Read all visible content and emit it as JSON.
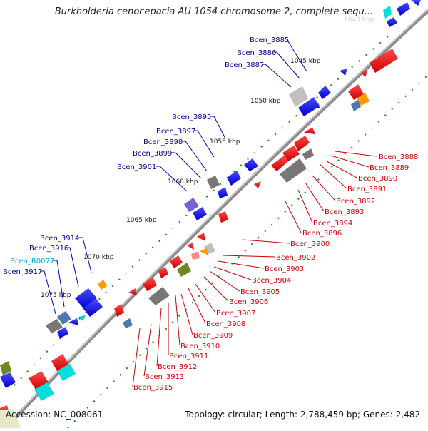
{
  "title": "Burkholderia cenocepacia AU 1054 chromosome 2, complete sequ...",
  "footer": {
    "accession": "Accession: NC_008061",
    "summary": "Topology: circular; Length: 2,788,459 bp; Genes: 2,482"
  },
  "colors": {
    "backbone": "#888888",
    "forward_gene": "#0000ee",
    "forward_label": "#00008b",
    "reverse_gene": "#ee0000",
    "reverse_label": "#cc0000",
    "rna_label": "#00b0d8",
    "tick": "#1a8a1a"
  },
  "ruler": {
    "unit": "kbp",
    "ticks": [
      "1045 kbp",
      "1050 kbp",
      "1055 kbp",
      "1060 kbp",
      "1065 kbp",
      "1070 kbp",
      "1075 kbp"
    ],
    "faded_tick": "1040 kbp"
  },
  "forward_labels": [
    "Bcen_3885",
    "Bcen_3886",
    "Bcen_3887",
    "Bcen_3895",
    "Bcen_3897",
    "Bcen_3898",
    "Bcen_3899",
    "Bcen_3901",
    "Bcen_3914",
    "Bcen_3916",
    "Bcen_R0077",
    "Bcen_3917"
  ],
  "reverse_labels": [
    "Bcen_3888",
    "Bcen_3889",
    "Bcen_3890",
    "Bcen_3891",
    "Bcen_3892",
    "Bcen_3893",
    "Bcen_3894",
    "Bcen_3896",
    "Bcen_3900",
    "Bcen_3902",
    "Bcen_3903",
    "Bcen_3904",
    "Bcen_3905",
    "Bcen_3906",
    "Bcen_3907",
    "Bcen_3908",
    "Bcen_3909",
    "Bcen_3910",
    "Bcen_3911",
    "Bcen_3912",
    "Bcen_3913",
    "Bcen_3915"
  ]
}
